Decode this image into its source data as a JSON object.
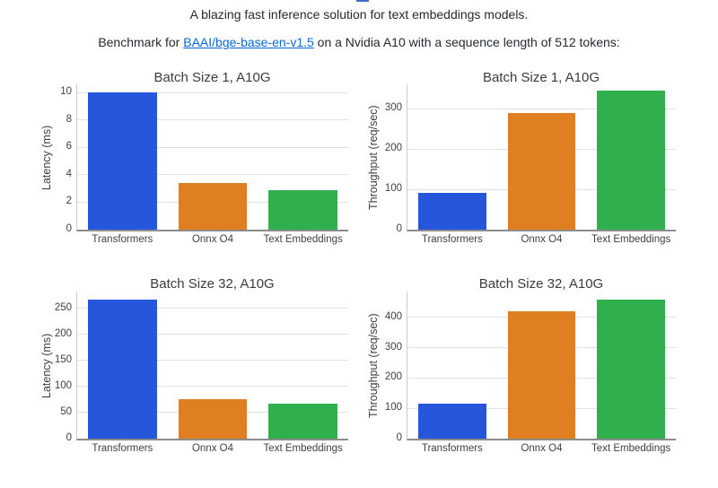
{
  "page": {
    "tagline": "A blazing fast inference solution for text embeddings models.",
    "benchmark_prefix": "Benchmark for ",
    "benchmark_link": "BAAI/bge-base-en-v1.5",
    "benchmark_suffix": " on a Nvidia A10 with a sequence length of 512 tokens:"
  },
  "colors": {
    "link": "#0969da",
    "text": "#24292f",
    "bar_blue": "#2556DC",
    "bar_orange": "#E07E22",
    "bar_green": "#2FAF4D",
    "gridline": "#e2e2e2",
    "axis_line": "#8c8c8c",
    "cropped_fragment": "#3f6bcf"
  },
  "chart_data": [
    {
      "type": "bar",
      "title": "Batch Size 1, A10G",
      "ylabel": "Latency (ms)",
      "xlabel": "",
      "categories": [
        "Transformers",
        "Onnx O4",
        "Text Embeddings"
      ],
      "values": [
        10,
        3.4,
        2.9
      ],
      "bar_colors": [
        "#2556DC",
        "#E07E22",
        "#2FAF4D"
      ],
      "ylim": [
        0,
        10.6
      ],
      "yticks": [
        0,
        2,
        4,
        6,
        8,
        10
      ],
      "grid": true,
      "legend": "none"
    },
    {
      "type": "bar",
      "title": "Batch Size 1, A10G",
      "ylabel": "Throughput (req/sec)",
      "xlabel": "",
      "categories": [
        "Transformers",
        "Onnx O4",
        "Text Embeddings"
      ],
      "values": [
        92,
        290,
        345
      ],
      "bar_colors": [
        "#2556DC",
        "#E07E22",
        "#2FAF4D"
      ],
      "ylim": [
        0,
        360
      ],
      "yticks": [
        0,
        100,
        200,
        300
      ],
      "grid": true,
      "legend": "none"
    },
    {
      "type": "bar",
      "title": "Batch Size 32, A10G",
      "ylabel": "Latency (ms)",
      "xlabel": "",
      "categories": [
        "Transformers",
        "Onnx O4",
        "Text Embeddings"
      ],
      "values": [
        267,
        75,
        67
      ],
      "bar_colors": [
        "#2556DC",
        "#E07E22",
        "#2FAF4D"
      ],
      "ylim": [
        0,
        282
      ],
      "yticks": [
        0,
        50,
        100,
        150,
        200,
        250
      ],
      "grid": true,
      "legend": "none"
    },
    {
      "type": "bar",
      "title": "Batch Size 32, A10G",
      "ylabel": "Throughput (req/sec)",
      "xlabel": "",
      "categories": [
        "Transformers",
        "Onnx O4",
        "Text Embeddings"
      ],
      "values": [
        115,
        420,
        458
      ],
      "bar_colors": [
        "#2556DC",
        "#E07E22",
        "#2FAF4D"
      ],
      "ylim": [
        0,
        485
      ],
      "yticks": [
        0,
        100,
        200,
        300,
        400
      ],
      "grid": true,
      "legend": "none"
    }
  ]
}
